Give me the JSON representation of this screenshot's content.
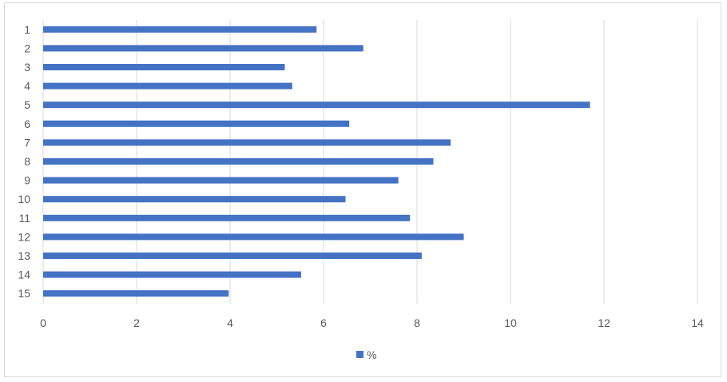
{
  "chart_data": {
    "type": "bar",
    "orientation": "horizontal",
    "categories": [
      "1",
      "2",
      "3",
      "4",
      "5",
      "6",
      "7",
      "8",
      "9",
      "10",
      "11",
      "12",
      "13",
      "14",
      "15"
    ],
    "series": [
      {
        "name": "%",
        "color": "#4472C4",
        "values": [
          5.85,
          6.85,
          5.17,
          5.33,
          11.7,
          6.55,
          8.72,
          8.35,
          7.6,
          6.47,
          7.85,
          9.0,
          8.1,
          5.52,
          3.97
        ]
      }
    ],
    "xlim": [
      0,
      14
    ],
    "x_ticks": [
      0,
      2,
      4,
      6,
      8,
      10,
      12,
      14
    ],
    "grid": "vertical",
    "gridline_color": "#d9d9d9",
    "legend_position": "bottom",
    "title": "",
    "xlabel": "",
    "ylabel": ""
  }
}
